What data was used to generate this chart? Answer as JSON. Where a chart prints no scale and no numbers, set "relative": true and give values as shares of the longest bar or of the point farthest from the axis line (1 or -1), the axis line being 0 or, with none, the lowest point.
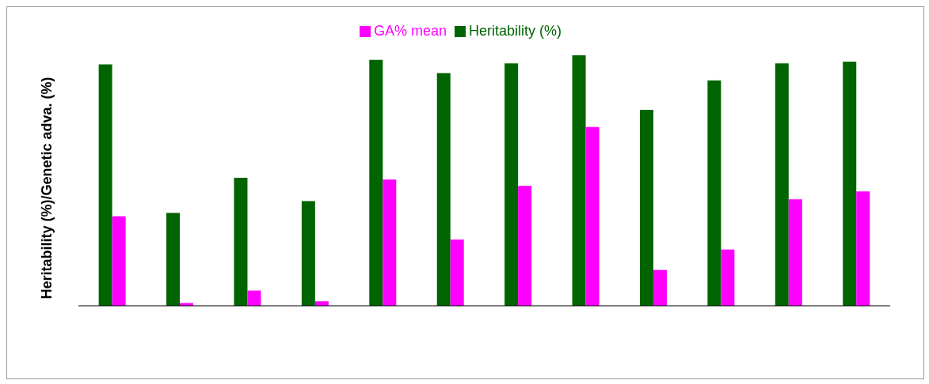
{
  "chart_data": {
    "type": "bar",
    "relative": true,
    "ylabel": "Heritability (%)/Genetic adva. (%)",
    "legend": "top",
    "categories": [
      null,
      null,
      null,
      null,
      null,
      null,
      null,
      null,
      null,
      null,
      null,
      null
    ],
    "series": [
      {
        "name": "Heritability (%)",
        "color": "#006400",
        "values": [
          0.964,
          0.371,
          0.511,
          0.418,
          0.982,
          0.929,
          0.968,
          1,
          0.782,
          0.9,
          0.968,
          0.975
        ]
      },
      {
        "name": "GA% mean",
        "color": "#ff00ff",
        "values": [
          0.357,
          0.011,
          0.061,
          0.018,
          0.504,
          0.264,
          0.479,
          0.714,
          0.143,
          0.225,
          0.425,
          0.457
        ]
      }
    ]
  }
}
